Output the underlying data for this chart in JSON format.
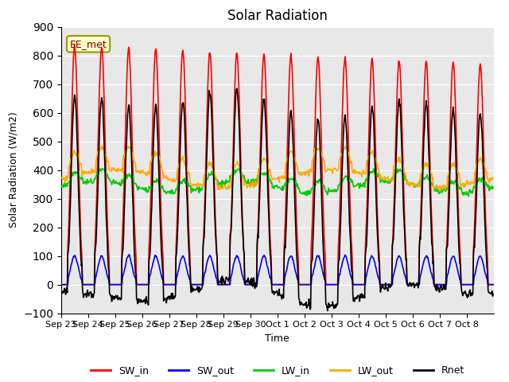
{
  "title": "Solar Radiation",
  "xlabel": "Time",
  "ylabel": "Solar Radiation (W/m2)",
  "ylim": [
    -100,
    900
  ],
  "yticks": [
    -100,
    0,
    100,
    200,
    300,
    400,
    500,
    600,
    700,
    800,
    900
  ],
  "bg_color": "#e8e8e8",
  "annotation_text": "EE_met",
  "series": {
    "SW_in": {
      "color": "#ff0000",
      "lw": 1.2
    },
    "SW_out": {
      "color": "#0000ff",
      "lw": 1.2
    },
    "LW_in": {
      "color": "#00cc00",
      "lw": 1.2
    },
    "LW_out": {
      "color": "#ffaa00",
      "lw": 1.2
    },
    "Rnet": {
      "color": "#000000",
      "lw": 1.2
    }
  },
  "n_days": 16,
  "dt_hours": 0.5,
  "x_tick_labels": [
    "Sep 23",
    "Sep 24",
    "Sep 25",
    "Sep 26",
    "Sep 27",
    "Sep 28",
    "Sep 29",
    "Sep 30",
    "Oct 1",
    "Oct 2",
    "Oct 3",
    "Oct 4",
    "Oct 5",
    "Oct 6",
    "Oct 7",
    "Oct 8"
  ]
}
